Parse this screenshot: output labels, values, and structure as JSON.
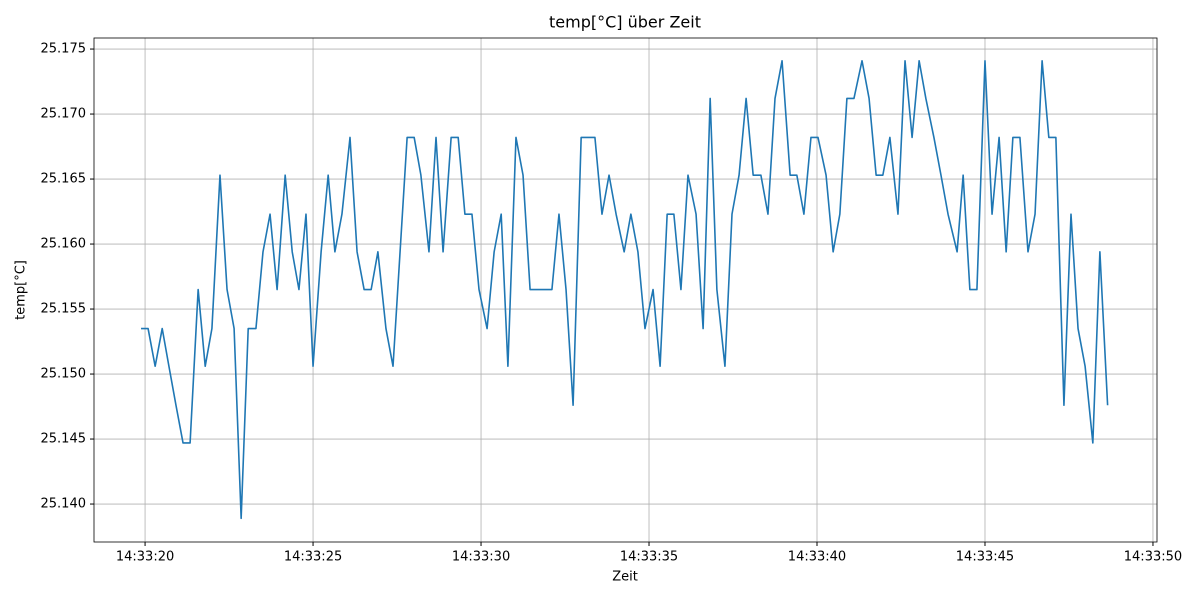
{
  "chart_data": {
    "type": "line",
    "title": "temp[°C] über Zeit",
    "xlabel": "Zeit",
    "ylabel": "temp[°C]",
    "x": [
      52399.88,
      52400.09,
      52400.3,
      52400.51,
      52400.71,
      52400.92,
      52401.13,
      52401.34,
      52401.58,
      52401.79,
      52401.99,
      52402.23,
      52402.44,
      52402.65,
      52402.86,
      52403.07,
      52403.3,
      52403.51,
      52403.72,
      52403.93,
      52404.17,
      52404.38,
      52404.58,
      52404.79,
      52405.0,
      52405.24,
      52405.45,
      52405.65,
      52405.86,
      52406.1,
      52406.31,
      52406.52,
      52406.73,
      52406.93,
      52407.17,
      52407.38,
      52407.59,
      52407.8,
      52408.01,
      52408.21,
      52408.45,
      52408.66,
      52408.87,
      52409.11,
      52409.32,
      52409.52,
      52409.73,
      52409.94,
      52410.18,
      52410.39,
      52410.6,
      52410.8,
      52411.04,
      52411.25,
      52411.46,
      52411.67,
      52411.88,
      52412.11,
      52412.32,
      52412.53,
      52412.74,
      52412.98,
      52413.18,
      52413.39,
      52413.6,
      52413.81,
      52414.02,
      52414.26,
      52414.46,
      52414.67,
      52414.88,
      52415.12,
      52415.33,
      52415.54,
      52415.74,
      52415.95,
      52416.16,
      52416.4,
      52416.61,
      52416.82,
      52417.02,
      52417.26,
      52417.47,
      52417.68,
      52417.89,
      52418.1,
      52418.33,
      52418.54,
      52418.75,
      52418.96,
      52419.2,
      52419.4,
      52419.61,
      52419.82,
      52420.03,
      52420.27,
      52420.48,
      52420.68,
      52420.89,
      52421.1,
      52421.34,
      52421.55,
      52421.76,
      52421.96,
      52422.17,
      52422.41,
      52422.62,
      52422.83,
      52423.04,
      52423.24,
      52423.48,
      52423.69,
      52423.9,
      52424.17,
      52424.35,
      52424.55,
      52424.76,
      52425.0,
      52425.21,
      52425.42,
      52425.63,
      52425.83,
      52426.04,
      52426.28,
      52426.49,
      52426.7,
      52426.9,
      52427.11,
      52427.35,
      52427.56,
      52427.77,
      52427.98,
      52428.21,
      52428.42,
      52428.65
    ],
    "series": [
      {
        "color": "#1f77b4",
        "values": [
          25.1535,
          25.1535,
          25.1506,
          25.1535,
          25.1506,
          25.1476,
          25.1447,
          25.1447,
          25.1565,
          25.1506,
          25.1535,
          25.1653,
          25.1565,
          25.1535,
          25.1389,
          25.1535,
          25.1535,
          25.1594,
          25.1623,
          25.1565,
          25.1653,
          25.1594,
          25.1565,
          25.1623,
          25.1506,
          25.1594,
          25.1653,
          25.1594,
          25.1623,
          25.1682,
          25.1594,
          25.1565,
          25.1565,
          25.1594,
          25.1535,
          25.1506,
          25.1594,
          25.1682,
          25.1682,
          25.1653,
          25.1594,
          25.1682,
          25.1594,
          25.1682,
          25.1682,
          25.1623,
          25.1623,
          25.1565,
          25.1535,
          25.1594,
          25.1623,
          25.1506,
          25.1682,
          25.1653,
          25.1565,
          25.1565,
          25.1565,
          25.1565,
          25.1623,
          25.1565,
          25.1476,
          25.1682,
          25.1682,
          25.1682,
          25.1623,
          25.1653,
          25.1623,
          25.1594,
          25.1623,
          25.1594,
          25.1535,
          25.1565,
          25.1506,
          25.1623,
          25.1623,
          25.1565,
          25.1653,
          25.1623,
          25.1535,
          25.1712,
          25.1565,
          25.1506,
          25.1623,
          25.1653,
          25.1712,
          25.1653,
          25.1653,
          25.1623,
          25.1712,
          25.1741,
          25.1653,
          25.1653,
          25.1623,
          25.1682,
          25.1682,
          25.1653,
          25.1594,
          25.1623,
          25.1712,
          25.1712,
          25.1741,
          25.1712,
          25.1653,
          25.1653,
          25.1682,
          25.1623,
          25.1741,
          25.1682,
          25.1741,
          25.1712,
          25.1682,
          25.1653,
          25.1623,
          25.1594,
          25.1653,
          25.1565,
          25.1565,
          25.1741,
          25.1623,
          25.1682,
          25.1594,
          25.1682,
          25.1682,
          25.1594,
          25.1623,
          25.1741,
          25.1682,
          25.1682,
          25.1476,
          25.1623,
          25.1535,
          25.1506,
          25.1447,
          25.1594,
          25.1476
        ]
      }
    ],
    "xlim": [
      52398.48,
      52430.12
    ],
    "xticks": [
      {
        "value": 52400,
        "label": "14:33:20"
      },
      {
        "value": 52405,
        "label": "14:33:25"
      },
      {
        "value": 52410,
        "label": "14:33:30"
      },
      {
        "value": 52415,
        "label": "14:33:35"
      },
      {
        "value": 52420,
        "label": "14:33:40"
      },
      {
        "value": 52425,
        "label": "14:33:45"
      },
      {
        "value": 52430,
        "label": "14:33:50"
      }
    ],
    "ylim": [
      25.13708,
      25.17585
    ],
    "yticks": [
      {
        "value": 25.14,
        "label": "25.140"
      },
      25.145,
      {
        "value": 25.15,
        "label": "25.150"
      },
      25.155,
      {
        "value": 25.16,
        "label": "25.160"
      },
      25.165,
      {
        "value": 25.17,
        "label": "25.170"
      },
      25.175
    ],
    "grid": true
  }
}
